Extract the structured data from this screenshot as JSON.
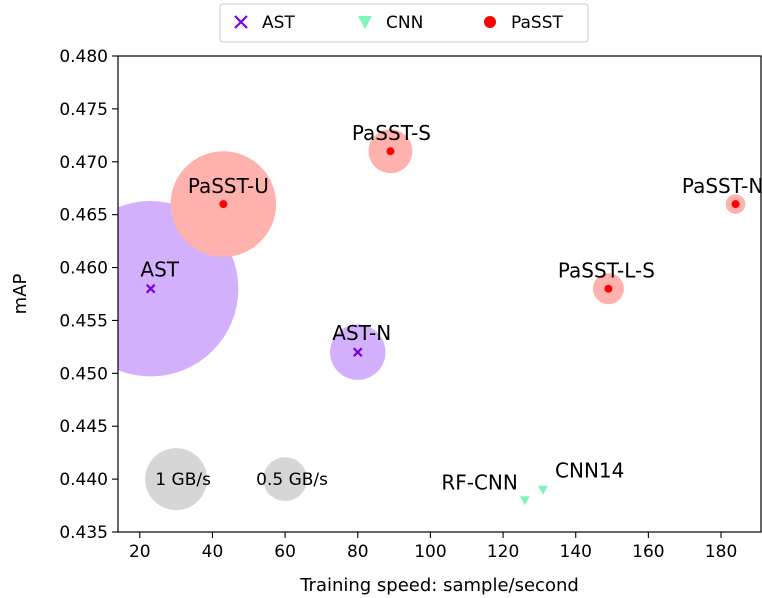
{
  "chart_data": {
    "type": "scatter",
    "xlabel": "Training speed: sample/second",
    "ylabel": "mAP",
    "xlim": [
      14,
      191
    ],
    "ylim": [
      0.435,
      0.48
    ],
    "xticks": [
      20,
      40,
      60,
      80,
      100,
      120,
      140,
      160,
      180
    ],
    "yticks": [
      "0.435",
      "0.440",
      "0.445",
      "0.450",
      "0.455",
      "0.460",
      "0.465",
      "0.470",
      "0.475",
      "0.480"
    ],
    "grid": false,
    "legend": {
      "placement": "top-center",
      "entries": [
        {
          "name": "AST",
          "marker": "x",
          "color": "#7a00e6"
        },
        {
          "name": "CNN",
          "marker": "triangle-down",
          "color": "#7ff5b8"
        },
        {
          "name": "PaSST",
          "marker": "circle",
          "color": "#ff0000"
        }
      ]
    },
    "points": [
      {
        "label": "AST",
        "series": "AST",
        "x": 23,
        "y": 0.458,
        "memory_gb_s": 8.0
      },
      {
        "label": "AST-N",
        "series": "AST",
        "x": 80,
        "y": 0.452,
        "memory_gb_s": 0.8
      },
      {
        "label": "PaSST-U",
        "series": "PaSST",
        "x": 43,
        "y": 0.466,
        "memory_gb_s": 2.9
      },
      {
        "label": "PaSST-S",
        "series": "PaSST",
        "x": 89,
        "y": 0.471,
        "memory_gb_s": 0.5
      },
      {
        "label": "PaSST-N-S",
        "series": "PaSST",
        "x": 184,
        "y": 0.466,
        "memory_gb_s": 0.1
      },
      {
        "label": "PaSST-L-S",
        "series": "PaSST",
        "x": 149,
        "y": 0.458,
        "memory_gb_s": 0.25
      },
      {
        "label": "RF-CNN",
        "series": "CNN",
        "x": 126,
        "y": 0.438,
        "memory_gb_s": 0
      },
      {
        "label": "CNN14",
        "series": "CNN",
        "x": 131,
        "y": 0.439,
        "memory_gb_s": 0
      }
    ],
    "size_reference": [
      {
        "label": "1 GB/s",
        "x": 30,
        "y": 0.44,
        "memory_gb_s": 1
      },
      {
        "label": "0.5 GB/s",
        "x": 60,
        "y": 0.44,
        "memory_gb_s": 0.5
      }
    ],
    "colors": {
      "ast_bubble": "#d3b0fb",
      "passt_bubble": "#ffb1ad",
      "passt_marker": "#ff0000",
      "ast_marker": "#7a00e6",
      "cnn_marker": "#7ff5b8",
      "reference_bubble": "#d6d6d6"
    }
  }
}
